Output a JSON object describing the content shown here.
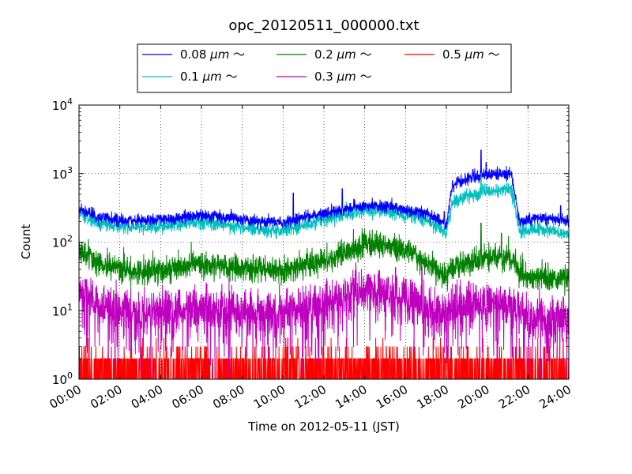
{
  "chart_data": {
    "type": "line",
    "title": "opc_20120511_000000.txt",
    "xlabel": "Time on 2012-05-11 (JST)",
    "ylabel": "Count",
    "x_scale": "time",
    "y_scale": "log",
    "xlim": [
      "00:00",
      "24:00"
    ],
    "ylim": [
      1,
      10000
    ],
    "grid": true,
    "legend": {
      "placement": "top-center-outside",
      "ncol": 3
    },
    "x_ticks": [
      "00:00",
      "02:00",
      "04:00",
      "06:00",
      "08:00",
      "10:00",
      "12:00",
      "14:00",
      "16:00",
      "18:00",
      "20:00",
      "22:00",
      "24:00"
    ],
    "y_ticks": [
      {
        "value": 1,
        "base": "10",
        "exp": "0"
      },
      {
        "value": 10,
        "base": "10",
        "exp": "1"
      },
      {
        "value": 100,
        "base": "10",
        "exp": "2"
      },
      {
        "value": 1000,
        "base": "10",
        "exp": "3"
      },
      {
        "value": 10000,
        "base": "10",
        "exp": "4"
      }
    ],
    "x_hours": [
      0,
      1,
      2,
      3,
      4,
      5,
      6,
      7,
      8,
      9,
      10,
      11,
      12,
      13,
      14,
      15,
      16,
      17,
      17.5,
      18,
      18.3,
      19,
      20,
      21,
      21.2,
      21.6,
      22,
      23,
      24
    ],
    "series": [
      {
        "name": "0.08 μm ～",
        "label_main": "0.08 ",
        "label_unit": "μm",
        "label_tail": " ～",
        "color": "#0000ff",
        "noise": 0.045,
        "values": [
          310,
          230,
          210,
          205,
          215,
          230,
          250,
          230,
          215,
          200,
          195,
          230,
          260,
          290,
          340,
          335,
          300,
          260,
          220,
          180,
          700,
          850,
          980,
          1000,
          960,
          190,
          215,
          220,
          200
        ],
        "spikes": [
          [
            10.5,
            520
          ],
          [
            12.9,
            600
          ],
          [
            17.9,
            280
          ],
          [
            19.3,
            1150
          ],
          [
            19.7,
            2200
          ],
          [
            19.95,
            1450
          ],
          [
            23.6,
            340
          ]
        ]
      },
      {
        "name": "0.1 μm ～",
        "label_main": "0.1 ",
        "label_unit": "μm",
        "label_tail": " ～",
        "color": "#00bfbf",
        "noise": 0.05,
        "values": [
          260,
          190,
          170,
          165,
          170,
          185,
          200,
          180,
          165,
          150,
          145,
          175,
          210,
          245,
          290,
          285,
          250,
          210,
          170,
          140,
          380,
          470,
          560,
          580,
          560,
          140,
          150,
          150,
          130
        ],
        "spikes": [
          [
            13.1,
            380
          ],
          [
            19.7,
            950
          ],
          [
            19.95,
            700
          ]
        ]
      },
      {
        "name": "0.2 μm ～",
        "label_main": "0.2 ",
        "label_unit": "μm",
        "label_tail": " ～",
        "color": "#008000",
        "noise": 0.09,
        "values": [
          75,
          48,
          40,
          37,
          38,
          42,
          48,
          44,
          42,
          40,
          38,
          44,
          52,
          70,
          95,
          92,
          75,
          52,
          40,
          32,
          45,
          50,
          55,
          58,
          54,
          35,
          32,
          28,
          32
        ],
        "spikes": [
          [
            19.7,
            190
          ],
          [
            20.7,
            135
          ]
        ]
      },
      {
        "name": "0.3 μm ～",
        "label_main": "0.3 ",
        "label_unit": "μm",
        "label_tail": " ～",
        "color": "#bf00bf",
        "noise": 0.16,
        "values": [
          20,
          11,
          10,
          9,
          10,
          10,
          11,
          10,
          10,
          10,
          9,
          11,
          12,
          15,
          20,
          19,
          16,
          12,
          10,
          8,
          12,
          12,
          13,
          13,
          12,
          9,
          8,
          7,
          8
        ],
        "spikes": [
          [
            16.8,
            45
          ]
        ]
      },
      {
        "name": "0.5 μm ～",
        "label_main": "0.5 ",
        "label_unit": "μm",
        "label_tail": " ～",
        "color": "#ff0000",
        "noise": 0,
        "values": [],
        "spikes": []
      }
    ]
  }
}
